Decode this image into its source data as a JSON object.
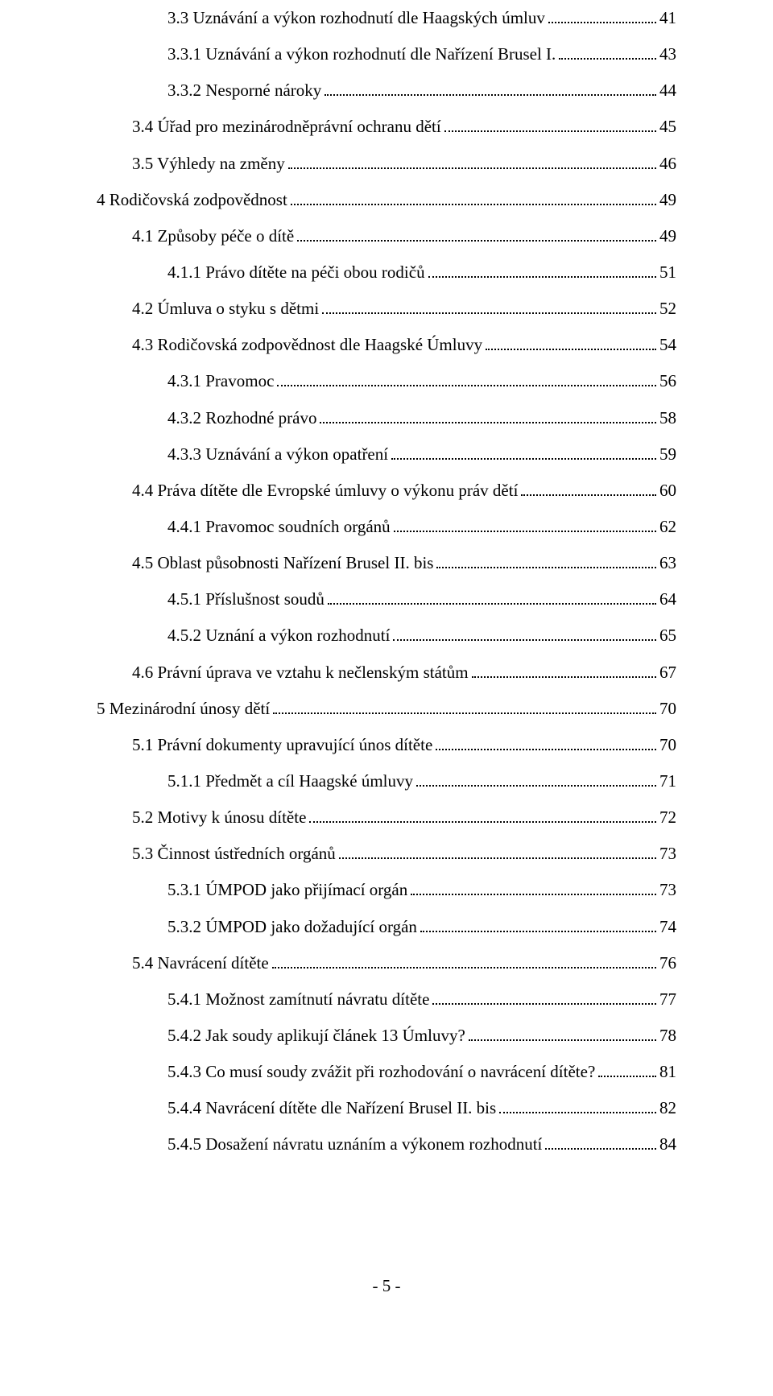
{
  "toc": [
    {
      "level": 2,
      "label": "3.3 Uznávání a výkon rozhodnutí dle Haagských úmluv",
      "page": "41"
    },
    {
      "level": 2,
      "label": "3.3.1 Uznávání a výkon rozhodnutí dle Nařízení Brusel I.",
      "page": "43"
    },
    {
      "level": 2,
      "label": "3.3.2 Nesporné nároky",
      "page": "44"
    },
    {
      "level": 1,
      "label": "3.4 Úřad pro mezinárodněprávní ochranu dětí",
      "page": "45"
    },
    {
      "level": 1,
      "label": "3.5 Výhledy na změny",
      "page": "46"
    },
    {
      "level": 0,
      "label": "4 Rodičovská zodpovědnost",
      "page": "49"
    },
    {
      "level": 1,
      "label": "4.1 Způsoby péče o dítě",
      "page": "49"
    },
    {
      "level": 2,
      "label": "4.1.1 Právo dítěte na péči obou rodičů",
      "page": "51"
    },
    {
      "level": 1,
      "label": "4.2 Úmluva o styku s dětmi",
      "page": "52"
    },
    {
      "level": 1,
      "label": "4.3 Rodičovská zodpovědnost dle Haagské Úmluvy",
      "page": "54"
    },
    {
      "level": 2,
      "label": "4.3.1 Pravomoc",
      "page": "56"
    },
    {
      "level": 2,
      "label": "4.3.2 Rozhodné právo",
      "page": "58"
    },
    {
      "level": 2,
      "label": "4.3.3 Uznávání a výkon opatření",
      "page": "59"
    },
    {
      "level": 1,
      "label": "4.4 Práva dítěte dle Evropské úmluvy o výkonu práv dětí",
      "page": "60"
    },
    {
      "level": 2,
      "label": "4.4.1 Pravomoc soudních orgánů",
      "page": "62"
    },
    {
      "level": 1,
      "label": "4.5 Oblast působnosti Nařízení Brusel II. bis",
      "page": "63"
    },
    {
      "level": 2,
      "label": "4.5.1 Příslušnost soudů",
      "page": "64"
    },
    {
      "level": 2,
      "label": "4.5.2 Uznání a výkon rozhodnutí",
      "page": "65"
    },
    {
      "level": 1,
      "label": "4.6 Právní úprava ve vztahu k nečlenským státům",
      "page": "67"
    },
    {
      "level": 0,
      "label": "5 Mezinárodní únosy dětí",
      "page": "70"
    },
    {
      "level": 1,
      "label": "5.1 Právní dokumenty upravující únos dítěte",
      "page": "70"
    },
    {
      "level": 2,
      "label": "5.1.1 Předmět a cíl Haagské úmluvy",
      "page": "71"
    },
    {
      "level": 1,
      "label": "5.2 Motivy k únosu dítěte",
      "page": "72"
    },
    {
      "level": 1,
      "label": "5.3 Činnost ústředních orgánů",
      "page": "73"
    },
    {
      "level": 2,
      "label": "5.3.1 ÚMPOD jako přijímací orgán",
      "page": "73"
    },
    {
      "level": 2,
      "label": "5.3.2 ÚMPOD jako dožadující orgán",
      "page": "74"
    },
    {
      "level": 1,
      "label": "5.4 Navrácení dítěte",
      "page": "76"
    },
    {
      "level": 2,
      "label": "5.4.1 Možnost zamítnutí návratu dítěte",
      "page": "77"
    },
    {
      "level": 2,
      "label": "5.4.2 Jak soudy aplikují článek 13 Úmluvy?",
      "page": "78"
    },
    {
      "level": 2,
      "label": "5.4.3 Co musí soudy zvážit při rozhodování o navrácení dítěte?",
      "page": "81"
    },
    {
      "level": 2,
      "label": "5.4.4 Navrácení dítěte dle Nařízení Brusel II. bis",
      "page": "82"
    },
    {
      "level": 2,
      "label": "5.4.5 Dosažení návratu uznáním a výkonem rozhodnutí",
      "page": "84"
    }
  ],
  "footer": "- 5 -"
}
